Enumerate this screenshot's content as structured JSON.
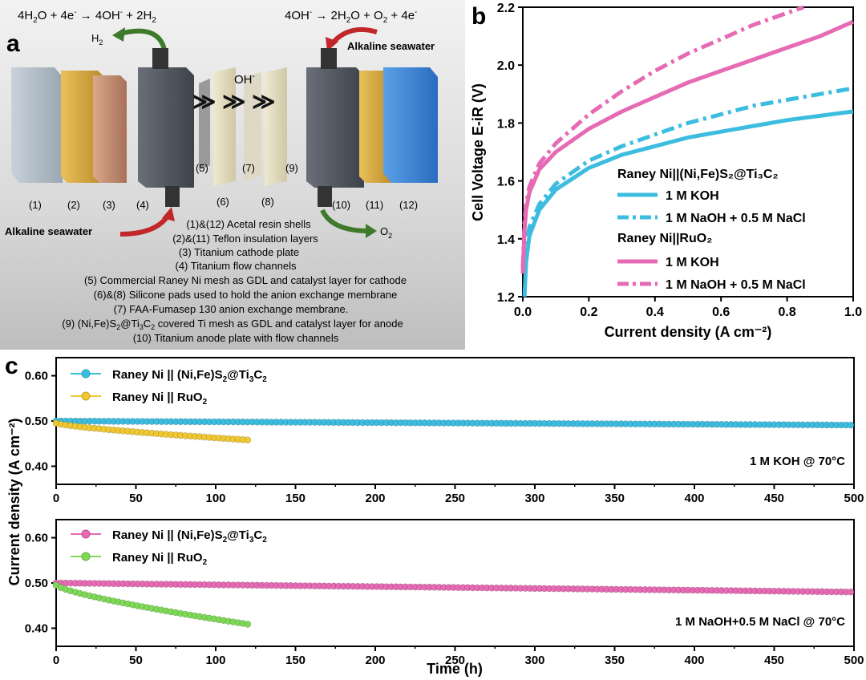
{
  "panel_a": {
    "label": "a",
    "eq_cathode": {
      "base": "4H",
      "s1": "2",
      "m1": "O + 4e",
      "sup1": "-",
      "m2": " → 4OH",
      "sup2": "-",
      "m3": " + 2H",
      "s2": "2"
    },
    "eq_anode": {
      "base": "4OH",
      "sup1": "-",
      "m1": " → 2H",
      "s1": "2",
      "m2": "O + O",
      "s2": "2",
      "m3": " + 4e",
      "sup2": "-"
    },
    "h2": {
      "base": "H",
      "sub": "2"
    },
    "o2": {
      "base": "O",
      "sub": "2"
    },
    "oh": {
      "base": "OH",
      "sup": "-"
    },
    "seawater_in": "Alkaline seawater",
    "seawater_top": "Alkaline seawater",
    "numbers": [
      "(1)",
      "(2)",
      "(3)",
      "(4)",
      "(5)",
      "(6)",
      "(7)",
      "(8)",
      "(9)",
      "(10)",
      "(11)",
      "(12)"
    ],
    "legend": [
      {
        "text": "(1)&(12) Acetal resin shells"
      },
      {
        "text": "(2)&(11) Teflon insulation layers"
      },
      {
        "text": "(3) Titanium cathode plate"
      },
      {
        "text": "(4) Titanium flow channels"
      },
      {
        "text": "(5) Commercial Raney Ni mesh as GDL and catalyst layer for cathode"
      },
      {
        "text": "(6)&(8) Silicone pads used to hold the anion exchange membrane"
      },
      {
        "text": "(7) FAA-Fumasep 130 anion exchange membrane."
      },
      {
        "pre": "(9) (Ni,Fe)S",
        "s1": "2",
        "mid": "@Ti",
        "s2": "3",
        "mid2": "C",
        "s3": "2",
        "post": " covered Ti mesh as GDL and catalyst layer for anode"
      },
      {
        "text": "(10) Titanium anode plate with flow channels"
      }
    ]
  },
  "chart_data": [
    {
      "panel": "b",
      "type": "line",
      "xlabel": "Current density (A cm⁻²)",
      "ylabel": "Cell Voltage E-iR (V)",
      "xlim": [
        0,
        1.0
      ],
      "ylim": [
        1.2,
        2.2
      ],
      "xticks": [
        "0.0",
        "0.2",
        "0.4",
        "0.6",
        "0.8",
        "1.0"
      ],
      "yticks": [
        "1.2",
        "1.4",
        "1.6",
        "1.8",
        "2.0",
        "2.2"
      ],
      "legend_groups": [
        {
          "title": "Raney Ni||(Ni,Fe)S₂@Ti₃C₂",
          "entries": [
            "1 M KOH",
            "1 M NaOH + 0.5 M NaCl"
          ]
        },
        {
          "title": "Raney Ni||RuO₂",
          "entries": [
            "1 M KOH",
            "1 M NaOH + 0.5 M NaCl"
          ]
        }
      ],
      "series": [
        {
          "name": "1 M KOH",
          "group": "Raney Ni||(Ni,Fe)S₂@Ti₃C₂",
          "color": "#3cbde0",
          "dash": "solid",
          "x": [
            0.005,
            0.01,
            0.02,
            0.05,
            0.1,
            0.2,
            0.3,
            0.4,
            0.5,
            0.6,
            0.7,
            0.8,
            0.9,
            1.0
          ],
          "y": [
            1.2,
            1.32,
            1.41,
            1.5,
            1.57,
            1.645,
            1.69,
            1.72,
            1.75,
            1.77,
            1.79,
            1.81,
            1.825,
            1.84
          ]
        },
        {
          "name": "1 M NaOH + 0.5 M NaCl",
          "group": "Raney Ni||(Ni,Fe)S₂@Ti₃C₂",
          "color": "#3cbde0",
          "dash": "dashdot",
          "x": [
            0.005,
            0.01,
            0.02,
            0.05,
            0.1,
            0.2,
            0.3,
            0.4,
            0.5,
            0.6,
            0.7,
            0.8,
            0.9,
            1.0
          ],
          "y": [
            1.32,
            1.38,
            1.44,
            1.52,
            1.59,
            1.67,
            1.72,
            1.76,
            1.8,
            1.83,
            1.86,
            1.88,
            1.9,
            1.92
          ]
        },
        {
          "name": "1 M KOH",
          "group": "Raney Ni||RuO₂",
          "color": "#e66ab4",
          "dash": "solid",
          "x": [
            0.0,
            0.005,
            0.01,
            0.02,
            0.05,
            0.1,
            0.2,
            0.3,
            0.4,
            0.5,
            0.6,
            0.7,
            0.8,
            0.9,
            1.0
          ],
          "y": [
            1.28,
            1.43,
            1.5,
            1.56,
            1.64,
            1.7,
            1.78,
            1.84,
            1.89,
            1.94,
            1.98,
            2.02,
            2.06,
            2.1,
            2.15
          ]
        },
        {
          "name": "1 M NaOH + 0.5 M NaCl",
          "group": "Raney Ni||RuO₂",
          "color": "#e66ab4",
          "dash": "dashdot",
          "x": [
            0.0,
            0.005,
            0.01,
            0.02,
            0.05,
            0.1,
            0.2,
            0.3,
            0.4,
            0.5,
            0.6,
            0.7,
            0.8,
            0.85
          ],
          "y": [
            1.3,
            1.46,
            1.52,
            1.58,
            1.66,
            1.73,
            1.83,
            1.91,
            1.98,
            2.04,
            2.09,
            2.14,
            2.18,
            2.2
          ]
        }
      ]
    },
    {
      "panel": "c-top",
      "type": "scatter",
      "xlim": [
        0,
        500
      ],
      "ylim": [
        0.36,
        0.64
      ],
      "xticks": [
        "0",
        "50",
        "100",
        "150",
        "200",
        "250",
        "300",
        "350",
        "400",
        "450",
        "500"
      ],
      "yticks": [
        "0.40",
        "0.50",
        "0.60"
      ],
      "annotation": "1 M KOH @ 70°C",
      "series": [
        {
          "name": "Raney Ni || (Ni,Fe)S₂@Ti₃C₂",
          "color": "#3cbde0",
          "x_range": [
            0,
            500
          ],
          "y_start": 0.5,
          "y_end": 0.491
        },
        {
          "name": "Raney Ni || RuO₂",
          "color": "#f0c832",
          "x_range": [
            0,
            120
          ],
          "y_start": 0.495,
          "y_end": 0.458
        }
      ]
    },
    {
      "panel": "c-bottom",
      "type": "scatter",
      "xlim": [
        0,
        500
      ],
      "ylim": [
        0.36,
        0.64
      ],
      "xticks": [
        "0",
        "50",
        "100",
        "150",
        "200",
        "250",
        "300",
        "350",
        "400",
        "450",
        "500"
      ],
      "yticks": [
        "0.40",
        "0.50",
        "0.60"
      ],
      "annotation": "1 M NaOH+0.5 M NaCl @ 70°C",
      "series": [
        {
          "name": "Raney Ni || (Ni,Fe)S₂@Ti₃C₂",
          "color": "#e66ab4",
          "x_range": [
            0,
            500
          ],
          "y_start": 0.5,
          "y_end": 0.48
        },
        {
          "name": "Raney Ni || RuO₂",
          "color": "#7ed957",
          "x_range": [
            0,
            120
          ],
          "y_start": 0.495,
          "y_end": 0.409
        }
      ]
    }
  ],
  "panel_c": {
    "label": "c",
    "xlabel": "Time (h)",
    "ylabel": "Current density (A cm⁻²)"
  },
  "panel_b": {
    "label": "b"
  }
}
